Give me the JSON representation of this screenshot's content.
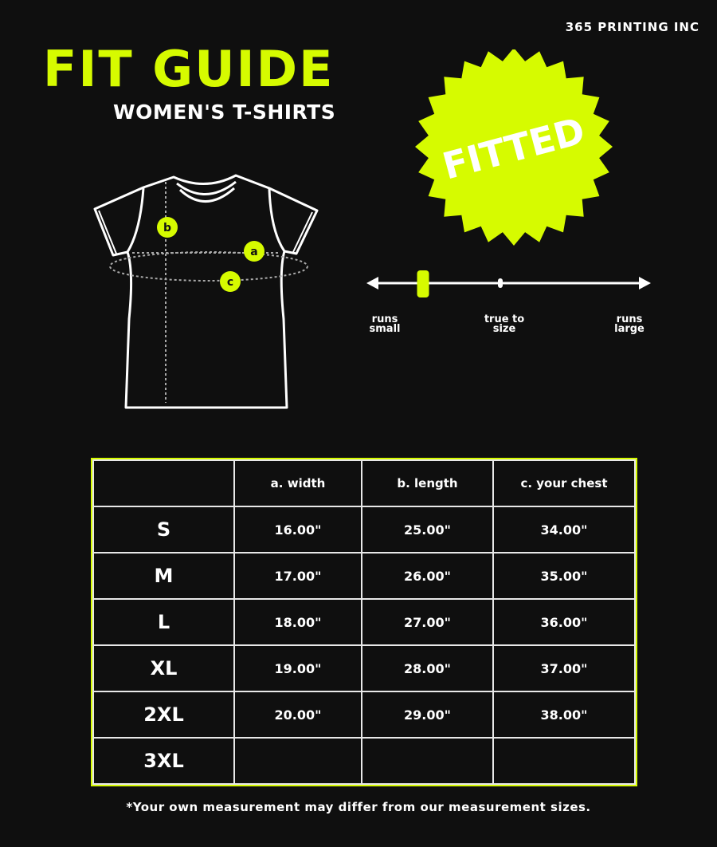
{
  "brand": "365 PRINTING INC",
  "title": "FIT GUIDE",
  "subtitle": "WOMEN'S T-SHIRTS",
  "badge": "FITTED",
  "diagram_labels": {
    "a": "a",
    "b": "b",
    "c": "c"
  },
  "fit_scale": {
    "left_label": "runs small",
    "middle_label": "true to size",
    "right_label": "runs large",
    "position": 0.19
  },
  "table": {
    "headers": [
      "",
      "a. width",
      "b. length",
      "c. your chest"
    ],
    "rows": [
      {
        "size": "S",
        "width": "16.00\"",
        "length": "25.00\"",
        "chest": "34.00\""
      },
      {
        "size": "M",
        "width": "17.00\"",
        "length": "26.00\"",
        "chest": "35.00\""
      },
      {
        "size": "L",
        "width": "18.00\"",
        "length": "27.00\"",
        "chest": "36.00\""
      },
      {
        "size": "XL",
        "width": "19.00\"",
        "length": "28.00\"",
        "chest": "37.00\""
      },
      {
        "size": "2XL",
        "width": "20.00\"",
        "length": "29.00\"",
        "chest": "38.00\""
      },
      {
        "size": "3XL",
        "width": "",
        "length": "",
        "chest": ""
      }
    ]
  },
  "note": "*Your own measurement may differ from our measurement sizes.",
  "colors": {
    "accent": "#d6fb00",
    "background": "#0f0f0f",
    "line": "#ffffff"
  }
}
